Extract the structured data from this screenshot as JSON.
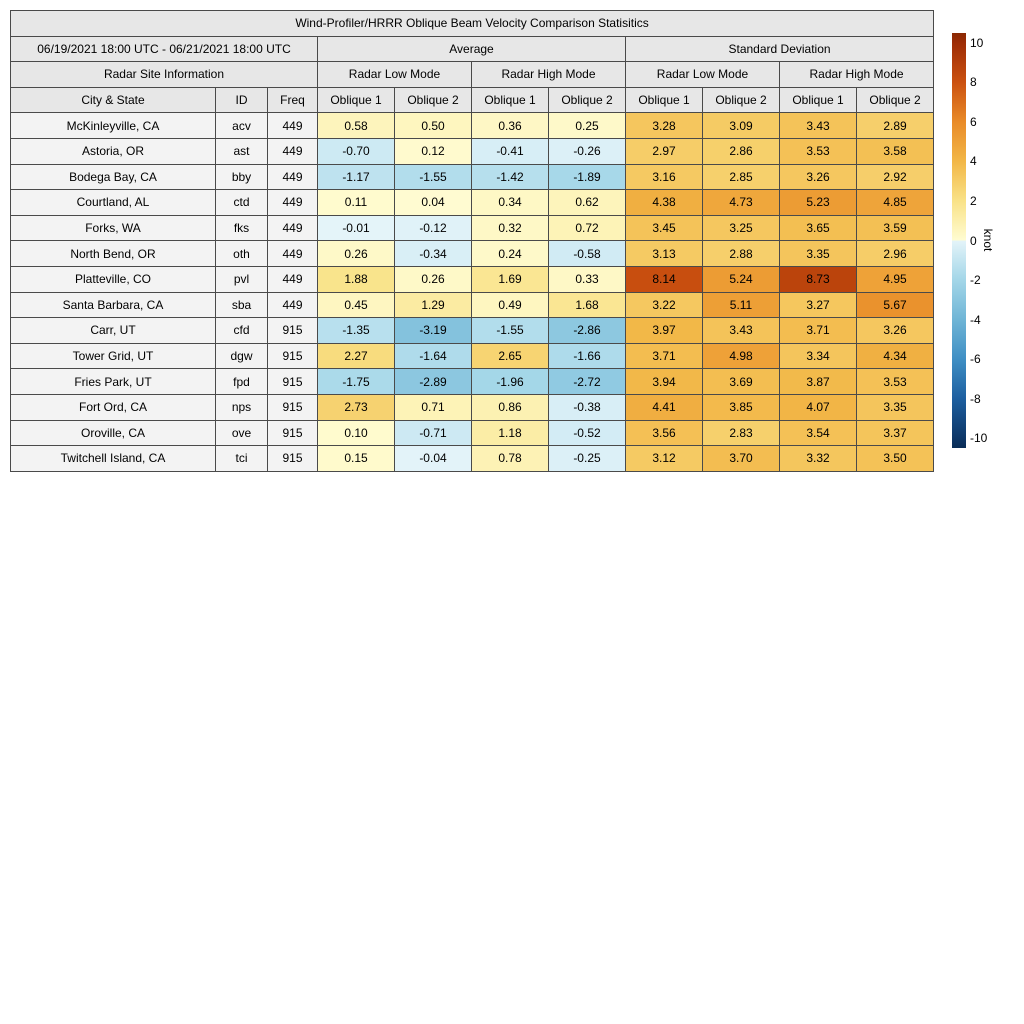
{
  "title": "Wind-Profiler/HRRR Oblique Beam Velocity Comparison Statisitics",
  "table": {
    "date_range": "06/19/2021 18:00 UTC - 06/21/2021 18:00 UTC",
    "group_average": "Average",
    "group_std": "Standard Deviation",
    "site_info": "Radar Site Information",
    "mode_low": "Radar Low Mode",
    "mode_high": "Radar High Mode",
    "col_city": "City & State",
    "col_id": "ID",
    "col_freq": "Freq",
    "col_oblique1": "Oblique 1",
    "col_oblique2": "Oblique 2"
  },
  "colorbar": {
    "label": "knot",
    "ticks": [
      10,
      8,
      6,
      4,
      2,
      0,
      -2,
      -4,
      -6,
      -8,
      -10
    ],
    "vmin": -10.5,
    "vmax": 10.5,
    "stops_negative": [
      {
        "v": -10.5,
        "c": "#0a2d56"
      },
      {
        "v": -10.0,
        "c": "#0d3667"
      },
      {
        "v": -8.0,
        "c": "#1d5fa0"
      },
      {
        "v": -6.0,
        "c": "#3f8fc4"
      },
      {
        "v": -4.0,
        "c": "#6fb5d6"
      },
      {
        "v": -2.0,
        "c": "#a3d6e8"
      },
      {
        "v": 0.0,
        "c": "#e4f4f9"
      }
    ],
    "stops_positive": [
      {
        "v": 0.0,
        "c": "#fffcd2"
      },
      {
        "v": 2.0,
        "c": "#f9e287"
      },
      {
        "v": 4.0,
        "c": "#f2b747"
      },
      {
        "v": 6.0,
        "c": "#e98b28"
      },
      {
        "v": 8.0,
        "c": "#cb5110"
      },
      {
        "v": 10.0,
        "c": "#9e2d06"
      },
      {
        "v": 10.5,
        "c": "#8a2903"
      }
    ]
  },
  "chart_data": {
    "type": "table",
    "title": "Wind-Profiler/HRRR Oblique Beam Velocity Comparison Statisitics",
    "date_range": "06/19/2021 18:00 UTC - 06/21/2021 18:00 UTC",
    "value_columns": [
      "Average Radar Low Mode Oblique 1",
      "Average Radar Low Mode Oblique 2",
      "Average Radar High Mode Oblique 1",
      "Average Radar High Mode Oblique 2",
      "Standard Deviation Radar Low Mode Oblique 1",
      "Standard Deviation Radar Low Mode Oblique 2",
      "Standard Deviation Radar High Mode Oblique 1",
      "Standard Deviation Radar High Mode Oblique 2"
    ],
    "unit": "knot",
    "color_range": [
      -10,
      10
    ],
    "rows": [
      {
        "city": "McKinleyville, CA",
        "id": "acv",
        "freq": 449,
        "values": [
          0.58,
          0.5,
          0.36,
          0.25,
          3.28,
          3.09,
          3.43,
          2.89
        ]
      },
      {
        "city": "Astoria, OR",
        "id": "ast",
        "freq": 449,
        "values": [
          -0.7,
          0.12,
          -0.41,
          -0.26,
          2.97,
          2.86,
          3.53,
          3.58
        ]
      },
      {
        "city": "Bodega Bay, CA",
        "id": "bby",
        "freq": 449,
        "values": [
          -1.17,
          -1.55,
          -1.42,
          -1.89,
          3.16,
          2.85,
          3.26,
          2.92
        ]
      },
      {
        "city": "Courtland, AL",
        "id": "ctd",
        "freq": 449,
        "values": [
          0.11,
          0.04,
          0.34,
          0.62,
          4.38,
          4.73,
          5.23,
          4.85
        ]
      },
      {
        "city": "Forks, WA",
        "id": "fks",
        "freq": 449,
        "values": [
          -0.01,
          -0.12,
          0.32,
          0.72,
          3.45,
          3.25,
          3.65,
          3.59
        ]
      },
      {
        "city": "North Bend, OR",
        "id": "oth",
        "freq": 449,
        "values": [
          0.26,
          -0.34,
          0.24,
          -0.58,
          3.13,
          2.88,
          3.35,
          2.96
        ]
      },
      {
        "city": "Platteville, CO",
        "id": "pvl",
        "freq": 449,
        "values": [
          1.88,
          0.26,
          1.69,
          0.33,
          8.14,
          5.24,
          8.73,
          4.95
        ]
      },
      {
        "city": "Santa Barbara, CA",
        "id": "sba",
        "freq": 449,
        "values": [
          0.45,
          1.29,
          0.49,
          1.68,
          3.22,
          5.11,
          3.27,
          5.67
        ]
      },
      {
        "city": "Carr, UT",
        "id": "cfd",
        "freq": 915,
        "values": [
          -1.35,
          -3.19,
          -1.55,
          -2.86,
          3.97,
          3.43,
          3.71,
          3.26
        ]
      },
      {
        "city": "Tower Grid, UT",
        "id": "dgw",
        "freq": 915,
        "values": [
          2.27,
          -1.64,
          2.65,
          -1.66,
          3.71,
          4.98,
          3.34,
          4.34
        ]
      },
      {
        "city": "Fries Park, UT",
        "id": "fpd",
        "freq": 915,
        "values": [
          -1.75,
          -2.89,
          -1.96,
          -2.72,
          3.94,
          3.69,
          3.87,
          3.53
        ]
      },
      {
        "city": "Fort Ord, CA",
        "id": "nps",
        "freq": 915,
        "values": [
          2.73,
          0.71,
          0.86,
          -0.38,
          4.41,
          3.85,
          4.07,
          3.35
        ]
      },
      {
        "city": "Oroville, CA",
        "id": "ove",
        "freq": 915,
        "values": [
          0.1,
          -0.71,
          1.18,
          -0.52,
          3.56,
          2.83,
          3.54,
          3.37
        ]
      },
      {
        "city": "Twitchell Island, CA",
        "id": "tci",
        "freq": 915,
        "values": [
          0.15,
          -0.04,
          0.78,
          -0.25,
          3.12,
          3.7,
          3.32,
          3.5
        ]
      }
    ]
  }
}
